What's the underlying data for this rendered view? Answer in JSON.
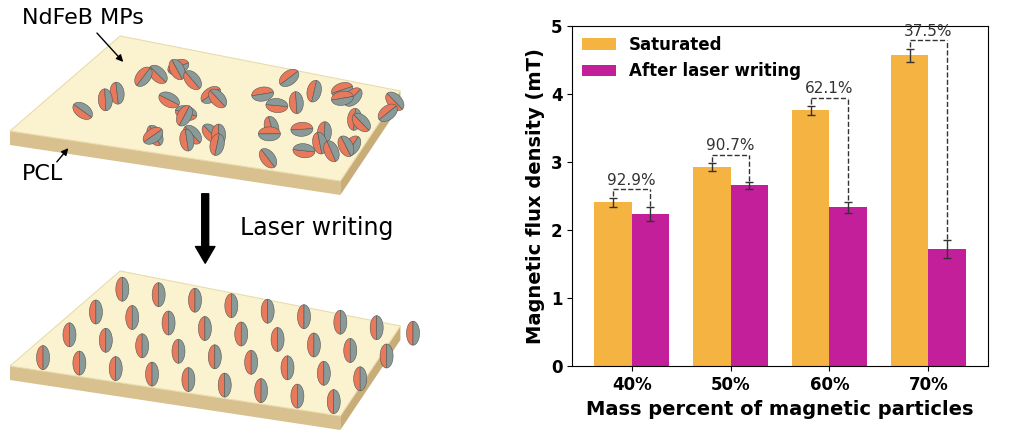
{
  "diagram": {
    "labels": {
      "particles": "NdFeB MPs",
      "matrix": "PCL",
      "process": "Laser writing"
    }
  },
  "chart_data": {
    "type": "bar",
    "x_label": "Mass percent of magnetic particles",
    "y_label": "Magnetic flux density (mT)",
    "categories": [
      "40%",
      "50%",
      "60%",
      "70%"
    ],
    "series": [
      {
        "name": "Saturated",
        "color": "#f5b342",
        "values": [
          2.41,
          2.93,
          3.76,
          4.57
        ],
        "errors": [
          0.07,
          0.06,
          0.07,
          0.1
        ]
      },
      {
        "name": "After laser writing",
        "color": "#c41f9b",
        "values": [
          2.24,
          2.66,
          2.34,
          1.72
        ],
        "errors": [
          0.1,
          0.05,
          0.08,
          0.13
        ]
      }
    ],
    "annotations": [
      "92.9%",
      "90.7%",
      "62.1%",
      "37.5%"
    ],
    "ylim": [
      0,
      5
    ],
    "yticks": [
      0,
      1,
      2,
      3,
      4,
      5
    ],
    "legend": "upper left",
    "grid": false
  }
}
